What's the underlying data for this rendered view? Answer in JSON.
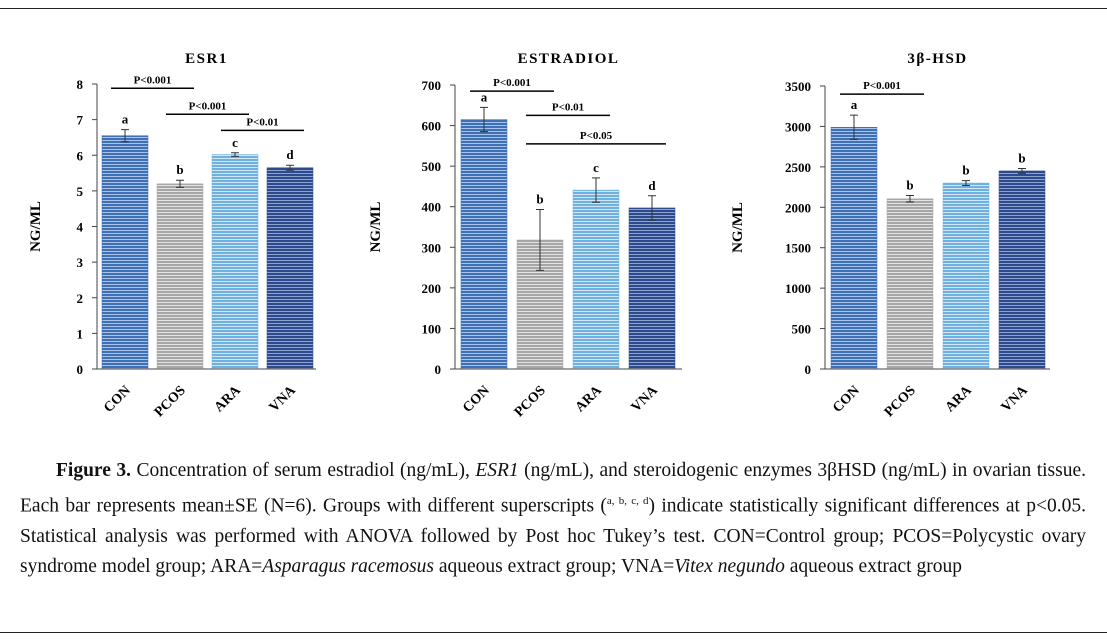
{
  "chart_data": [
    {
      "type": "bar",
      "title": "ESR1",
      "ylabel": "NG/ML",
      "categories": [
        "CON",
        "PCOS",
        "ARA",
        "VNA"
      ],
      "values": [
        6.55,
        5.2,
        6.02,
        5.65
      ],
      "errors": [
        0.17,
        0.1,
        0.05,
        0.07
      ],
      "letters": [
        "a",
        "b",
        "c",
        "d"
      ],
      "ylim": [
        0,
        8
      ],
      "yticks": [
        0,
        1,
        2,
        3,
        4,
        5,
        6,
        7,
        8
      ],
      "comparisons": [
        {
          "label": "P<0.001",
          "from": 0,
          "to": 1,
          "level": 7.88
        },
        {
          "label": "P<0.001",
          "from": 1,
          "to": 2,
          "level": 7.15
        },
        {
          "label": "P<0.01",
          "from": 2,
          "to": 3,
          "level": 6.7
        }
      ],
      "colors": [
        "#3f6fb5",
        "#a9a9a9",
        "#74b2e0",
        "#2e4a8c"
      ]
    },
    {
      "type": "bar",
      "title": "ESTRADIOL",
      "ylabel": "NG/ML",
      "categories": [
        "CON",
        "PCOS",
        "ARA",
        "VNA"
      ],
      "values": [
        615,
        318,
        441,
        397
      ],
      "errors": [
        30,
        75,
        30,
        30
      ],
      "letters": [
        "a",
        "b",
        "c",
        "d"
      ],
      "ylim": [
        0,
        700
      ],
      "yticks": [
        0,
        100,
        200,
        300,
        400,
        500,
        600,
        700
      ],
      "comparisons": [
        {
          "label": "P<0.001",
          "from": 0,
          "to": 1,
          "level": 685
        },
        {
          "label": "P<0.01",
          "from": 1,
          "to": 2,
          "level": 625
        },
        {
          "label": "P<0.05",
          "from": 1,
          "to": 3,
          "level": 555
        }
      ],
      "colors": [
        "#3f6fb5",
        "#a9a9a9",
        "#74b2e0",
        "#2e4a8c"
      ]
    },
    {
      "type": "bar",
      "title": "3β-HSD",
      "ylabel": "NG/ML",
      "categories": [
        "CON",
        "PCOS",
        "ARA",
        "VNA"
      ],
      "values": [
        2990,
        2105,
        2300,
        2450
      ],
      "errors": [
        150,
        40,
        30,
        30
      ],
      "letters": [
        "a",
        "b",
        "b",
        "b"
      ],
      "ylim": [
        0,
        3500
      ],
      "yticks": [
        0,
        500,
        1000,
        1500,
        2000,
        2500,
        3000,
        3500
      ],
      "comparisons": [
        {
          "label": "P<0.001",
          "from": 0,
          "to": 1,
          "level": 3400
        }
      ],
      "colors": [
        "#3f6fb5",
        "#a9a9a9",
        "#74b2e0",
        "#2e4a8c"
      ]
    }
  ],
  "caption": {
    "label": "Figure 3.",
    "part1": " Concentration of serum estradiol (ng/mL), ",
    "esr1": "ESR1",
    "part2": " (ng/mL), and steroidogenic enzymes 3βHSD (ng/mL) in ovarian tissue. Each bar represents mean±SE (N=6). Groups with different superscripts (",
    "superscripts": "a, b, c, d",
    "part3": ") indicate statistically significant differences at p<0.05. Statistical analysis was performed with ANOVA followed by Post hoc Tukey’s test. CON=Control group; PCOS=Polycystic ovary syndrome model group; ARA=",
    "ara_species": "Asparagus racemosus",
    "part4": " aqueous extract group; VNA=",
    "vna_species": "Vitex negundo",
    "part5": " aqueous extract group"
  }
}
